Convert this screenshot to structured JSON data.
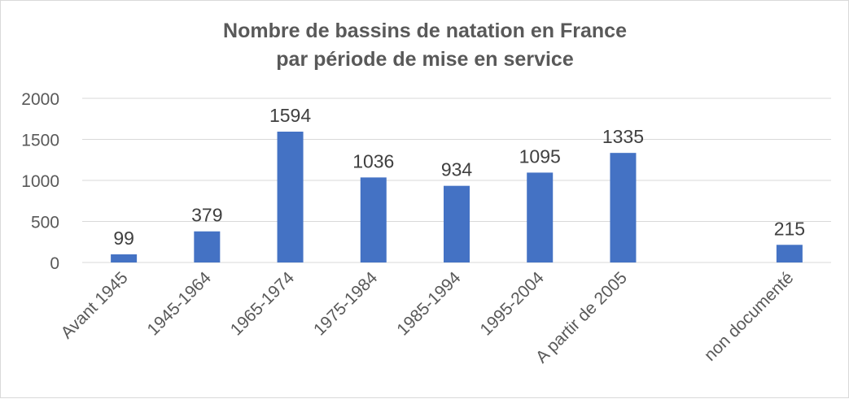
{
  "chart_data": {
    "type": "bar",
    "title_lines": [
      "Nombre de bassins de natation en France",
      "par période de mise en service"
    ],
    "categories": [
      "Avant 1945",
      "1945-1964",
      "1965-1974",
      "1975-1984",
      "1985-1994",
      "1995-2004",
      "A partir de 2005",
      "",
      "non documenté"
    ],
    "values": [
      99,
      379,
      1594,
      1036,
      934,
      1095,
      1335,
      null,
      215
    ],
    "data_labels": [
      "99",
      "379",
      "1594",
      "1036",
      "934",
      "1095",
      "1335",
      "",
      "215"
    ],
    "y_ticks": [
      "0",
      "500",
      "1000",
      "1500",
      "2000"
    ],
    "ylim": [
      0,
      2000
    ],
    "grid": true,
    "legend": "none",
    "bar_color": "#4472c4",
    "grid_color": "#d9d9d9"
  }
}
